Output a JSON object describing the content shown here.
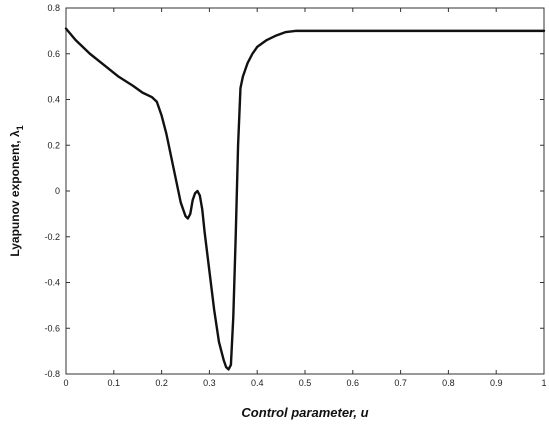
{
  "chart_data": {
    "type": "line",
    "title": "",
    "xlabel": "Control parameter, u",
    "ylabel": "Lyapunov exponent, λ",
    "ylabel_subscript": "1",
    "xlim": [
      0,
      1
    ],
    "ylim": [
      -0.8,
      0.8
    ],
    "xticks": [
      0,
      0.1,
      0.2,
      0.3,
      0.4,
      0.5,
      0.6,
      0.7,
      0.8,
      0.9,
      1
    ],
    "xtick_labels": [
      "0",
      "0.1",
      "0.2",
      "0.3",
      "0.4",
      "0.5",
      "0.6",
      "0.7",
      "0.8",
      "0.9",
      "1"
    ],
    "yticks": [
      0.8,
      0.6,
      0.4,
      0.2,
      0,
      -0.2,
      -0.4,
      -0.6,
      -0.8
    ],
    "ytick_labels": [
      "0.8",
      "0.6",
      "0.4",
      "0.2",
      "0",
      "-0.2",
      "-0.4",
      "-0.6",
      "-0.8"
    ],
    "grid": false,
    "line_color": "#111111",
    "series": [
      {
        "x": [
          0,
          0.02,
          0.05,
          0.08,
          0.11,
          0.14,
          0.16,
          0.18,
          0.19,
          0.2,
          0.21,
          0.22,
          0.23,
          0.24,
          0.25,
          0.255,
          0.26,
          0.265,
          0.27,
          0.275,
          0.28,
          0.285,
          0.29,
          0.3,
          0.31,
          0.32,
          0.33,
          0.335,
          0.34,
          0.345,
          0.35,
          0.355,
          0.36,
          0.365,
          0.37,
          0.38,
          0.39,
          0.4,
          0.42,
          0.44,
          0.46,
          0.48,
          0.5,
          0.6,
          0.7,
          0.8,
          0.9,
          1.0
        ],
        "y": [
          0.71,
          0.66,
          0.6,
          0.55,
          0.5,
          0.46,
          0.43,
          0.41,
          0.39,
          0.33,
          0.25,
          0.15,
          0.05,
          -0.05,
          -0.11,
          -0.12,
          -0.1,
          -0.04,
          -0.01,
          0.0,
          -0.02,
          -0.08,
          -0.18,
          -0.35,
          -0.52,
          -0.66,
          -0.74,
          -0.77,
          -0.78,
          -0.76,
          -0.55,
          -0.2,
          0.2,
          0.45,
          0.5,
          0.56,
          0.6,
          0.63,
          0.66,
          0.68,
          0.695,
          0.7,
          0.7,
          0.7,
          0.7,
          0.7,
          0.7,
          0.7
        ]
      }
    ]
  }
}
